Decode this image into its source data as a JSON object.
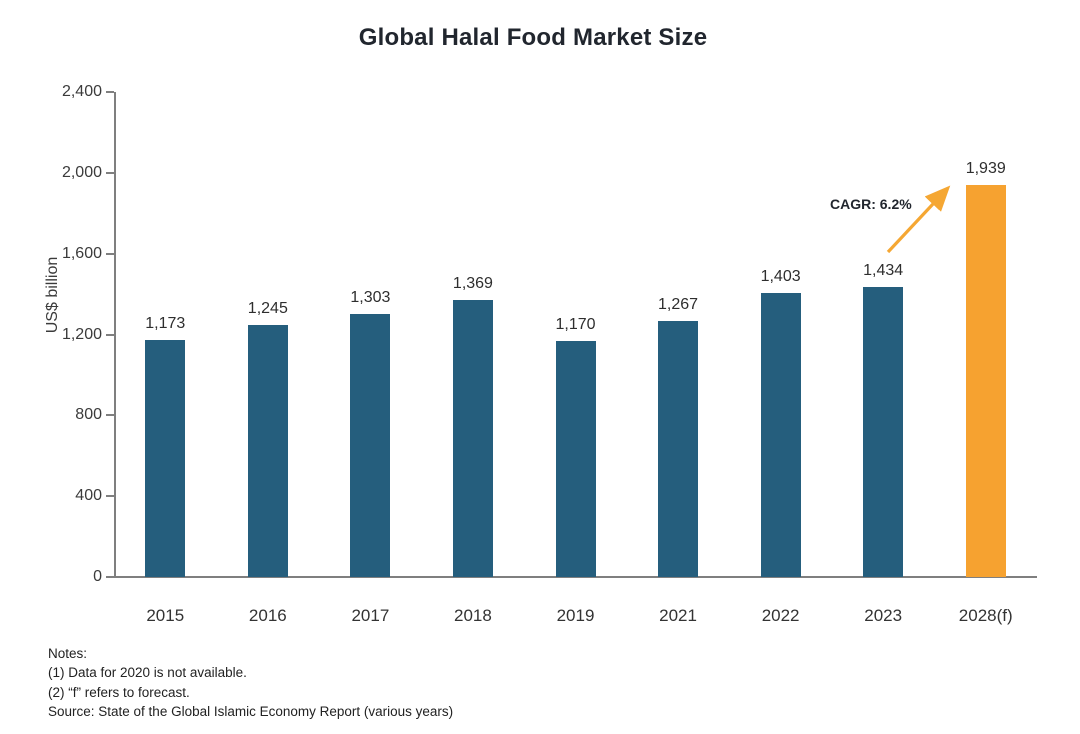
{
  "title": "Global Halal Food Market Size",
  "chart_data": {
    "type": "bar",
    "title": "Global Halal Food Market Size",
    "categories": [
      "2015",
      "2016",
      "2017",
      "2018",
      "2019",
      "2021",
      "2022",
      "2023",
      "2028(f)"
    ],
    "values": [
      1173,
      1245,
      1303,
      1369,
      1170,
      1267,
      1403,
      1434,
      1939
    ],
    "value_labels": [
      "1,173",
      "1,245",
      "1,303",
      "1,369",
      "1,170",
      "1,267",
      "1,403",
      "1,434",
      "1,939"
    ],
    "xlabel": "",
    "ylabel": "US$ billion",
    "ylim": [
      0,
      2400
    ],
    "ytick_step": 400,
    "ytick_labels": [
      "0",
      "400",
      "800",
      "1,200",
      "1,600",
      "2,000",
      "2,400"
    ],
    "grid": false,
    "legend_position": "none",
    "bar_color": "#255e7d",
    "highlight_index": 8,
    "highlight_color": "#f6a230",
    "annotation": {
      "label": "CAGR: 6.2%",
      "arrow_color": "#f5a733"
    }
  },
  "notes": {
    "heading": "Notes:",
    "lines": [
      "(1) Data for 2020 is not available.",
      "(2) “f” refers to forecast.",
      "Source: State of the Global Islamic Economy Report (various years)"
    ]
  }
}
